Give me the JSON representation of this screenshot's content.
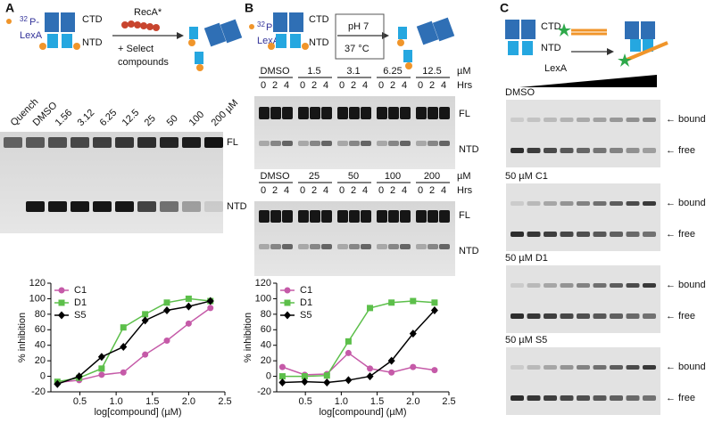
{
  "panel_a": {
    "label": "A",
    "isotope": "32",
    "isotope_rest": "P-",
    "protein": "LexA",
    "ctd": "CTD",
    "ntd": "NTD",
    "enzyme": "RecA*",
    "step_1": "+ Select",
    "step_2": "compounds",
    "lanes": [
      "Quench",
      "DMSO",
      "1.56",
      "3.12",
      "6.25",
      "12.5",
      "25",
      "50",
      "100",
      "200 µM"
    ],
    "band_fl": "FL",
    "band_ntd": "NTD"
  },
  "panel_b": {
    "label": "B",
    "isotope": "32",
    "isotope_rest": "P-",
    "protein": "LexA",
    "ctd": "CTD",
    "ntd": "NTD",
    "cond_1": "pH 7",
    "cond_2": "37 °C",
    "gel_1_groups": [
      "DMSO",
      "1.5",
      "3.1",
      "6.25",
      "12.5"
    ],
    "gel_2_groups": [
      "DMSO",
      "25",
      "50",
      "100",
      "200"
    ],
    "unit": "µM",
    "hrs": "Hrs",
    "times": [
      "0",
      "2",
      "4"
    ],
    "band_fl": "FL",
    "band_ntd": "NTD"
  },
  "panel_c": {
    "label": "C",
    "ctd": "CTD",
    "ntd": "NTD",
    "titrant": "LexA",
    "conditions": [
      "DMSO",
      "50 µM C1",
      "50 µM D1",
      "50 µM S5"
    ],
    "bound": "← bound",
    "free": "← free"
  },
  "chart_data": [
    {
      "type": "line",
      "xlabel": "log[compound] (µM)",
      "ylabel": "% inhibition",
      "x": [
        0.19,
        0.49,
        0.8,
        1.1,
        1.4,
        1.7,
        2.0,
        2.3
      ],
      "series": [
        {
          "name": "C1",
          "color": "#c55aa8",
          "values": [
            -8,
            -5,
            2,
            5,
            28,
            46,
            68,
            88
          ]
        },
        {
          "name": "D1",
          "color": "#5cbf4a",
          "values": [
            -7,
            -2,
            10,
            63,
            80,
            95,
            100,
            97
          ]
        },
        {
          "name": "S5",
          "color": "#000000",
          "values": [
            -10,
            0,
            25,
            38,
            72,
            85,
            90,
            97
          ]
        }
      ],
      "xlim": [
        0.1,
        2.5
      ],
      "xticks": [
        0.5,
        {
          "value": 1,
          "label": "1.0"
        },
        1.5,
        {
          "value": 2,
          "label": "2.0"
        },
        2.5
      ],
      "ylim": [
        -20,
        120
      ],
      "yticks": [
        -20,
        0,
        20,
        40,
        60,
        80,
        100,
        120
      ],
      "legend": "top-left"
    },
    {
      "type": "line",
      "xlabel": "log[compound] (µM)",
      "ylabel": "% inhibition",
      "x": [
        0.18,
        0.49,
        0.8,
        1.1,
        1.4,
        1.7,
        2.0,
        2.3
      ],
      "series": [
        {
          "name": "C1",
          "color": "#c55aa8",
          "values": [
            12,
            2,
            3,
            30,
            10,
            5,
            12,
            8
          ]
        },
        {
          "name": "D1",
          "color": "#5cbf4a",
          "values": [
            0,
            0,
            1,
            45,
            88,
            95,
            97,
            95
          ]
        },
        {
          "name": "S5",
          "color": "#000000",
          "values": [
            -8,
            -7,
            -8,
            -5,
            0,
            20,
            55,
            85
          ]
        }
      ],
      "xlim": [
        0.1,
        2.5
      ],
      "xticks": [
        0.5,
        {
          "value": 1,
          "label": "1.0"
        },
        1.5,
        {
          "value": 2,
          "label": "2.0"
        },
        2.5
      ],
      "ylim": [
        -20,
        120
      ],
      "yticks": [
        -20,
        0,
        20,
        40,
        60,
        80,
        100,
        120
      ],
      "legend": "top-left"
    }
  ]
}
